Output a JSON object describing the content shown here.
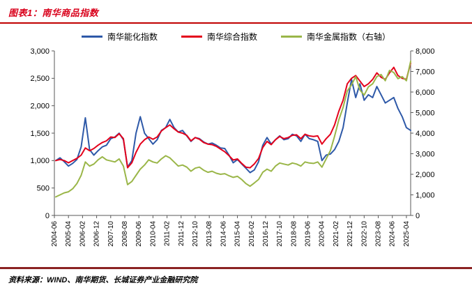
{
  "header": {
    "title": "图表1：南华商品指数"
  },
  "footer": {
    "source": "资料来源：WIND、南华期货、长城证券产业金融研究院"
  },
  "colors": {
    "title_red": "#D9001B",
    "rule_red": "#C00000",
    "rule_dark": "#8B2222",
    "axis": "#595959",
    "axis_text": "#000000"
  },
  "chart_data": {
    "type": "line",
    "title": "南华商品指数",
    "legend_position": "top",
    "grid": false,
    "x_start": 2004.5,
    "x_step": 0.25,
    "x_domain": [
      2004.4167,
      2025.5
    ],
    "x_ticks": {
      "first": 2004.4167,
      "step": 0.8333,
      "labels": [
        "2004-06",
        "2005-04",
        "2006-02",
        "2006-12",
        "2007-10",
        "2008-08",
        "2009-06",
        "2010-04",
        "2011-02",
        "2011-12",
        "2012-10",
        "2013-08",
        "2014-06",
        "2015-04",
        "2016-02",
        "2016-12",
        "2017-10",
        "2018-08",
        "2019-06",
        "2020-04",
        "2021-02",
        "2021-12",
        "2022-10",
        "2023-08",
        "2024-06",
        "2025-04"
      ]
    },
    "left_axis": {
      "min": 0,
      "max": 3000,
      "step": 500,
      "tick_labels": [
        "0",
        "500",
        "1,000",
        "1,500",
        "2,000",
        "2,500",
        "3,000"
      ]
    },
    "right_axis": {
      "min": 0,
      "max": 8000,
      "step": 1000,
      "tick_labels": [
        "0",
        "1,000",
        "2,000",
        "3,000",
        "4,000",
        "5,000",
        "6,000",
        "7,000",
        "8,000"
      ]
    },
    "series": [
      {
        "name": "南华能化指数",
        "axis": "left",
        "color": "#2E59A8",
        "values": [
          1000,
          1050,
          980,
          900,
          950,
          1020,
          1250,
          1780,
          1200,
          1100,
          1180,
          1250,
          1280,
          1400,
          1430,
          1500,
          1380,
          880,
          1000,
          1500,
          1800,
          1500,
          1400,
          1300,
          1380,
          1550,
          1600,
          1750,
          1600,
          1520,
          1550,
          1450,
          1350,
          1420,
          1400,
          1340,
          1300,
          1320,
          1280,
          1230,
          1220,
          1100,
          960,
          1020,
          940,
          860,
          780,
          830,
          980,
          1280,
          1420,
          1300,
          1380,
          1450,
          1380,
          1400,
          1480,
          1450,
          1350,
          1480,
          1400,
          1380,
          1350,
          1000,
          1100,
          1120,
          1200,
          1350,
          1600,
          2050,
          2480,
          2150,
          2400,
          2100,
          2200,
          2150,
          2350,
          2200,
          2050,
          2100,
          2150,
          1950,
          1800,
          1600,
          1550
        ]
      },
      {
        "name": "南华综合指数",
        "axis": "left",
        "color": "#E4001B",
        "values": [
          1000,
          1020,
          1000,
          960,
          1000,
          1040,
          1100,
          1230,
          1180,
          1220,
          1280,
          1330,
          1360,
          1430,
          1420,
          1490,
          1400,
          870,
          960,
          1150,
          1300,
          1380,
          1430,
          1390,
          1430,
          1540,
          1600,
          1650,
          1580,
          1520,
          1500,
          1460,
          1360,
          1420,
          1390,
          1330,
          1300,
          1290,
          1260,
          1210,
          1160,
          1090,
          1010,
          1030,
          950,
          880,
          870,
          940,
          1040,
          1240,
          1350,
          1290,
          1380,
          1440,
          1400,
          1420,
          1460,
          1470,
          1400,
          1480,
          1450,
          1440,
          1450,
          1300,
          1400,
          1480,
          1650,
          1900,
          2100,
          2400,
          2500,
          2550,
          2450,
          2350,
          2400,
          2480,
          2600,
          2520,
          2480,
          2600,
          2700,
          2550,
          2500,
          2480,
          2780
        ]
      },
      {
        "name": "南华金属指数（右轴）",
        "axis": "right",
        "color": "#9AB648",
        "values": [
          900,
          1000,
          1100,
          1150,
          1300,
          1550,
          1950,
          2600,
          2400,
          2500,
          2700,
          2850,
          2700,
          2650,
          2600,
          2750,
          2400,
          1500,
          1650,
          1950,
          2250,
          2450,
          2700,
          2600,
          2550,
          2750,
          2900,
          2800,
          2600,
          2400,
          2450,
          2350,
          2150,
          2300,
          2350,
          2200,
          2100,
          2150,
          2050,
          2000,
          2030,
          1930,
          1850,
          1900,
          1750,
          1550,
          1420,
          1580,
          1750,
          2100,
          2250,
          2150,
          2400,
          2550,
          2500,
          2450,
          2550,
          2500,
          2400,
          2600,
          2550,
          2530,
          2600,
          2350,
          2750,
          3150,
          3850,
          4650,
          5250,
          6050,
          6350,
          6750,
          6100,
          5850,
          6250,
          6400,
          6750,
          6850,
          6550,
          7050,
          6950,
          6650,
          6750,
          6550,
          7500
        ]
      }
    ]
  }
}
